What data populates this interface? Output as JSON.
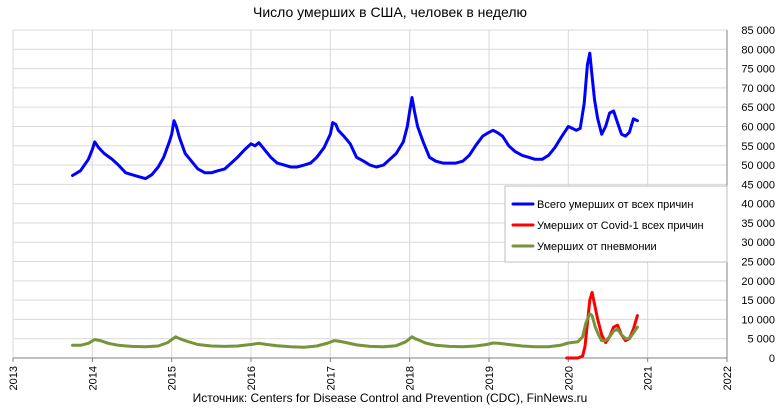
{
  "chart_data": {
    "type": "line",
    "title": "Число умерших в США, человек в неделю",
    "source": "Источник: Centers for Disease Control and Prevention (CDC), FinNews.ru",
    "xlim": [
      2013,
      2022
    ],
    "ylim": [
      0,
      85000
    ],
    "x_ticks": [
      "2013",
      "2014",
      "2015",
      "2016",
      "2017",
      "2018",
      "2019",
      "2020",
      "2021",
      "2022"
    ],
    "y_ticks": [
      "0",
      "5 000",
      "10 000",
      "15 000",
      "20 000",
      "25 000",
      "30 000",
      "35 000",
      "40 000",
      "45 000",
      "50 000",
      "55 000",
      "60 000",
      "65 000",
      "70 000",
      "75 000",
      "80 000",
      "85 000"
    ],
    "grid": true,
    "legend_position": "right",
    "series": [
      {
        "name": "Всего умерших от всех причин",
        "color": "#0000FF",
        "x": [
          2013.75,
          2013.85,
          2013.95,
          2014.0,
          2014.03,
          2014.08,
          2014.15,
          2014.25,
          2014.33,
          2014.42,
          2014.5,
          2014.58,
          2014.67,
          2014.75,
          2014.83,
          2014.9,
          2014.97,
          2015.0,
          2015.03,
          2015.06,
          2015.1,
          2015.17,
          2015.25,
          2015.33,
          2015.42,
          2015.5,
          2015.58,
          2015.67,
          2015.75,
          2015.83,
          2015.92,
          2016.0,
          2016.05,
          2016.1,
          2016.17,
          2016.25,
          2016.33,
          2016.42,
          2016.5,
          2016.58,
          2016.67,
          2016.75,
          2016.83,
          2016.92,
          2017.0,
          2017.03,
          2017.07,
          2017.1,
          2017.17,
          2017.25,
          2017.33,
          2017.42,
          2017.5,
          2017.58,
          2017.67,
          2017.75,
          2017.83,
          2017.92,
          2017.97,
          2018.0,
          2018.03,
          2018.06,
          2018.1,
          2018.17,
          2018.25,
          2018.33,
          2018.42,
          2018.5,
          2018.58,
          2018.67,
          2018.75,
          2018.83,
          2018.92,
          2019.0,
          2019.05,
          2019.1,
          2019.17,
          2019.25,
          2019.33,
          2019.42,
          2019.5,
          2019.58,
          2019.67,
          2019.75,
          2019.83,
          2019.92,
          2020.0,
          2020.05,
          2020.1,
          2020.15,
          2020.2,
          2020.24,
          2020.27,
          2020.3,
          2020.33,
          2020.37,
          2020.42,
          2020.47,
          2020.52,
          2020.57,
          2020.62,
          2020.67,
          2020.72,
          2020.77,
          2020.82,
          2020.87
        ],
        "y": [
          47300,
          48500,
          51500,
          54000,
          56000,
          54500,
          53000,
          51500,
          50000,
          48000,
          47500,
          47000,
          46500,
          47500,
          49500,
          52000,
          56000,
          58000,
          61500,
          60000,
          57000,
          53000,
          51000,
          49000,
          48000,
          48000,
          48500,
          49000,
          50500,
          52000,
          54000,
          55500,
          55000,
          55800,
          54000,
          52000,
          50500,
          50000,
          49500,
          49500,
          50000,
          50500,
          52000,
          54500,
          58000,
          61000,
          60500,
          59000,
          57500,
          55500,
          52000,
          51000,
          50000,
          49500,
          50000,
          51500,
          53000,
          56000,
          60000,
          64000,
          67500,
          64000,
          60000,
          56000,
          52000,
          51000,
          50500,
          50500,
          50500,
          51000,
          52500,
          55000,
          57500,
          58500,
          59000,
          58500,
          57500,
          55000,
          53500,
          52500,
          52000,
          51500,
          51500,
          52500,
          54500,
          57500,
          60000,
          59500,
          59000,
          59500,
          66000,
          76000,
          79000,
          73000,
          67000,
          62000,
          58000,
          60000,
          63500,
          64000,
          61000,
          58000,
          57500,
          58500,
          62000,
          61500
        ]
      },
      {
        "name": "Умерших от Covid-1 всех причин",
        "color": "#FF0000",
        "x": [
          2019.98,
          2020.12,
          2020.18,
          2020.21,
          2020.24,
          2020.27,
          2020.3,
          2020.33,
          2020.37,
          2020.42,
          2020.47,
          2020.52,
          2020.57,
          2020.62,
          2020.67,
          2020.72,
          2020.77,
          2020.82,
          2020.87
        ],
        "y": [
          0,
          0,
          500,
          3000,
          9000,
          15000,
          17000,
          14000,
          10000,
          6000,
          4000,
          5500,
          8000,
          8500,
          6000,
          4500,
          5000,
          7500,
          11000
        ]
      },
      {
        "name": "Умерших от пневмонии",
        "color": "#77933C",
        "x": [
          2013.75,
          2013.85,
          2013.95,
          2014.03,
          2014.1,
          2014.2,
          2014.33,
          2014.5,
          2014.67,
          2014.83,
          2014.95,
          2015.05,
          2015.1,
          2015.2,
          2015.33,
          2015.5,
          2015.67,
          2015.83,
          2016.0,
          2016.1,
          2016.2,
          2016.33,
          2016.5,
          2016.67,
          2016.83,
          2016.97,
          2017.05,
          2017.12,
          2017.2,
          2017.33,
          2017.5,
          2017.67,
          2017.83,
          2017.95,
          2018.03,
          2018.07,
          2018.12,
          2018.2,
          2018.33,
          2018.5,
          2018.67,
          2018.83,
          2018.97,
          2019.05,
          2019.12,
          2019.25,
          2019.42,
          2019.58,
          2019.75,
          2019.9,
          2020.0,
          2020.12,
          2020.18,
          2020.22,
          2020.27,
          2020.3,
          2020.34,
          2020.38,
          2020.42,
          2020.47,
          2020.52,
          2020.57,
          2020.62,
          2020.67,
          2020.72,
          2020.77,
          2020.82,
          2020.87
        ],
        "y": [
          3300,
          3300,
          3800,
          4800,
          4500,
          3800,
          3300,
          3000,
          2900,
          3100,
          4000,
          5500,
          5000,
          4300,
          3500,
          3100,
          3000,
          3100,
          3500,
          3800,
          3500,
          3200,
          2900,
          2800,
          3100,
          3900,
          4500,
          4300,
          4000,
          3400,
          3000,
          2900,
          3200,
          4200,
          5500,
          5000,
          4600,
          3900,
          3300,
          3000,
          2900,
          3100,
          3500,
          3900,
          3800,
          3500,
          3100,
          2900,
          2900,
          3300,
          3900,
          4200,
          5500,
          9000,
          11500,
          11000,
          8000,
          6000,
          4500,
          4500,
          5500,
          7000,
          7500,
          6000,
          5000,
          5000,
          6500,
          8000
        ]
      }
    ]
  }
}
